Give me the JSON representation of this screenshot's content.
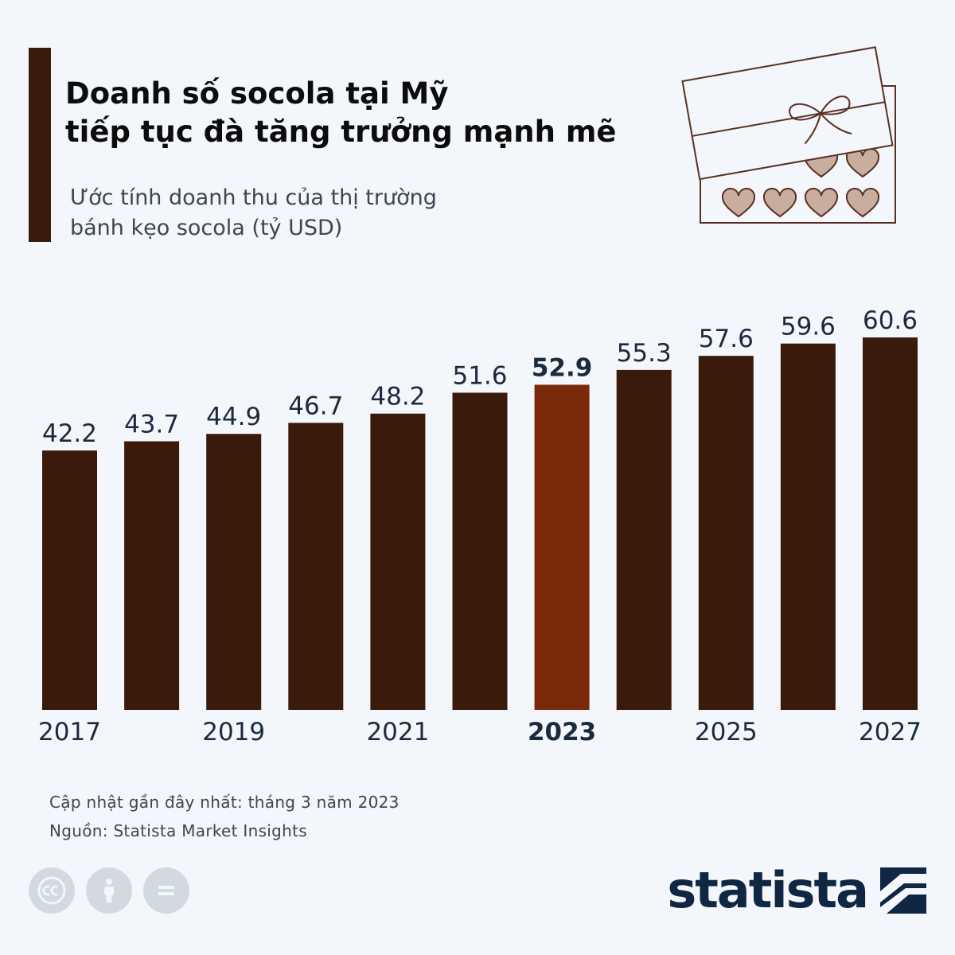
{
  "header": {
    "title_line1": "Doanh số socola tại Mỹ",
    "title_line2": "tiếp tục đà tăng trưởng mạnh mẽ",
    "subtitle_line1": "Ước tính doanh thu của thị trường",
    "subtitle_line2": "bánh kẹo socola (tỷ USD)"
  },
  "illustration": {
    "icon": "chocolate-box-icon"
  },
  "colors": {
    "accent": "#3a1a0a",
    "bar": "#3a1a0a",
    "highlight": "#7a2a0a",
    "background": "#f3f6fa",
    "text": "#1b2a3f"
  },
  "chart_data": {
    "type": "bar",
    "title": "Doanh số socola tại Mỹ tiếp tục đà tăng trưởng mạnh mẽ",
    "subtitle": "Ước tính doanh thu của thị trường bánh kẹo socola (tỷ USD)",
    "categories": [
      "2017",
      "2018",
      "2019",
      "2020",
      "2021",
      "2022",
      "2023",
      "2024",
      "2025",
      "2026",
      "2027"
    ],
    "x_tick_labels": [
      "2017",
      "",
      "2019",
      "",
      "2021",
      "",
      "2023",
      "",
      "2025",
      "",
      "2027"
    ],
    "values": [
      42.2,
      43.7,
      44.9,
      46.7,
      48.2,
      51.6,
      52.9,
      55.3,
      57.6,
      59.6,
      60.6
    ],
    "value_labels": [
      "42.2",
      "43.7",
      "44.9",
      "46.7",
      "48.2",
      "51.6",
      "52.9",
      "55.3",
      "57.6",
      "59.6",
      "60.6"
    ],
    "highlight_category": "2023",
    "ylim": [
      0,
      65
    ],
    "grid": false,
    "xlabel": "",
    "ylabel": ""
  },
  "footer": {
    "updated": "Cập nhật gần đây nhất: tháng 3 năm 2023",
    "source": "Nguồn: Statista Market Insights"
  },
  "license_icons": [
    "cc-icon",
    "attribution-icon",
    "no-derivatives-icon"
  ],
  "brand": {
    "name": "statista",
    "logo_icon": "statista-logo-icon"
  }
}
